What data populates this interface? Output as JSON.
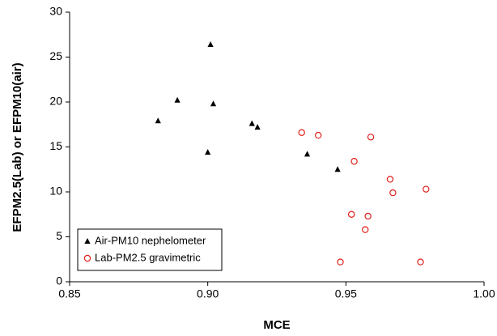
{
  "chart_data": {
    "type": "scatter",
    "xlabel": "MCE",
    "ylabel": "EFPM2.5(Lab) or EFPM10(air)",
    "xlim": [
      0.85,
      1.0
    ],
    "ylim": [
      0,
      30
    ],
    "xticks": [
      0.85,
      {
        "value": 0.9,
        "label": "0.90"
      },
      0.95,
      {
        "value": 1.0,
        "label": "1.00"
      }
    ],
    "yticks": [
      0,
      5,
      10,
      15,
      20,
      25,
      30
    ],
    "legend_position": "lower left",
    "series": [
      {
        "name": "Air-PM10 nephelometer",
        "color": "#000000",
        "marker": "triangle",
        "x": [
          0.901,
          0.889,
          0.902,
          0.882,
          0.916,
          0.918,
          0.9,
          0.936,
          0.947
        ],
        "values": [
          26.4,
          20.2,
          19.8,
          17.9,
          17.6,
          17.2,
          14.4,
          14.2,
          12.5
        ]
      },
      {
        "name": "Lab-PM2.5 gravimetric",
        "color": "#e0201b",
        "marker": "circle",
        "x": [
          0.934,
          0.94,
          0.959,
          0.953,
          0.966,
          0.967,
          0.979,
          0.952,
          0.958,
          0.957,
          0.948,
          0.977
        ],
        "values": [
          16.6,
          16.3,
          16.1,
          13.4,
          11.4,
          9.9,
          10.3,
          7.5,
          7.3,
          5.8,
          2.2,
          2.2
        ]
      }
    ]
  }
}
